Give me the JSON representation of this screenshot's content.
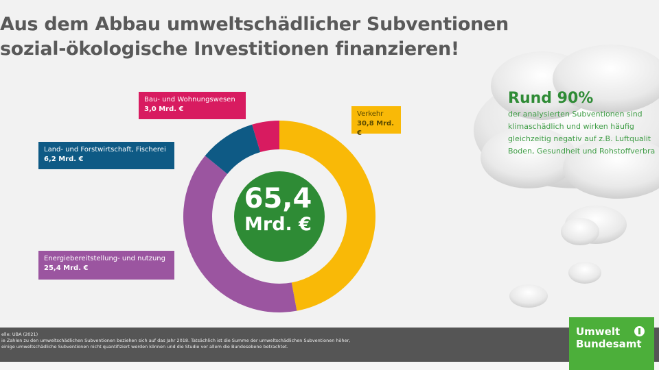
{
  "title": {
    "line1": "Aus dem Abbau umweltschädlicher Subventionen",
    "line2": "sozial-ökologische Investitionen finanzieren!"
  },
  "colors": {
    "verkehr": "#f9b907",
    "energie": "#9b55a0",
    "land": "#0e5a85",
    "bau": "#d81b60",
    "center": "#2e8b35",
    "footer": "#555555",
    "logo": "#4caf3a"
  },
  "chart_data": {
    "type": "pie",
    "variant": "donut",
    "unit": "Mrd. €",
    "total_label": "65,4",
    "total_unit": "Mrd. €",
    "slices": [
      {
        "name": "Verkehr",
        "value": 30.8,
        "value_label": "30,8 Mrd. €",
        "color": "#f9b907"
      },
      {
        "name": "Energiebereitstellung- und nutzung",
        "value": 25.4,
        "value_label": "25,4 Mrd. €",
        "color": "#9b55a0"
      },
      {
        "name": "Land- und Forstwirtschaft, Fischerei",
        "value": 6.2,
        "value_label": "6,2 Mrd. €",
        "color": "#0e5a85"
      },
      {
        "name": "Bau- und Wohnungswesen",
        "value": 3.0,
        "value_label": "3,0 Mrd. €",
        "color": "#d81b60"
      }
    ]
  },
  "callout": {
    "headline": "Rund 90%",
    "lines": [
      "der analysierten Subventionen sind",
      "klimaschädlich und wirken häufig",
      "gleichzeitig negativ auf z.B. Luftqualit",
      "Boden, Gesundheit und Rohstoffverbra"
    ]
  },
  "footer": {
    "lines": [
      "elle: UBA (2021)",
      "ie Zahlen zu den umweltschädlichen Subventionen beziehen sich auf das Jahr 2018. Tatsächlich ist die Summe der umweltschädlichen Subventionen höher,",
      "einige umweltschädliche Subventionen nicht quantifiziert werden können und die Studie vor allem die Bundesebene betrachtet."
    ]
  },
  "logo": {
    "line1": "Umwelt",
    "line2": "Bundesamt"
  }
}
